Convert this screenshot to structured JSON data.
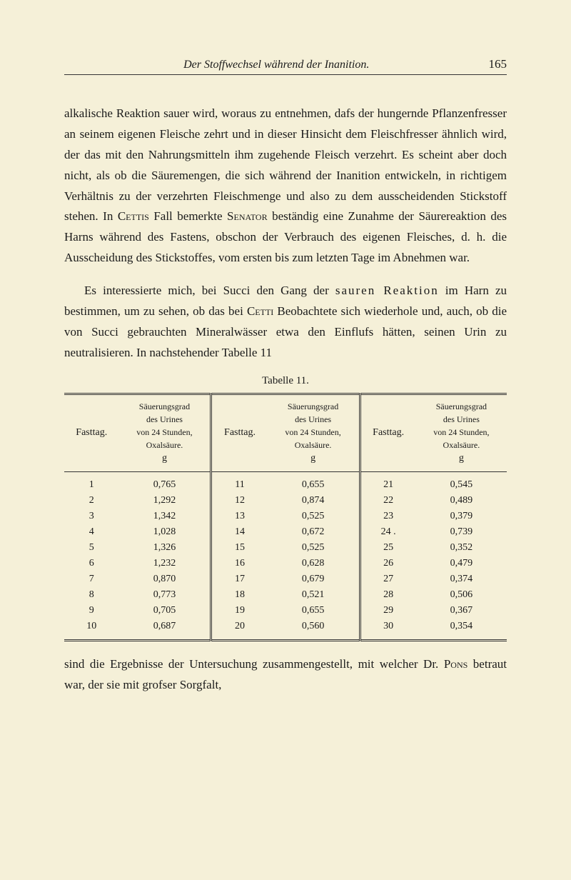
{
  "header": {
    "title": "Der Stoffwechsel während der Inanition.",
    "page_number": "165"
  },
  "paragraph1": "alkalische Reaktion sauer wird, woraus zu entnehmen, dafs der hungernde Pflanzenfresser an seinem eigenen Fleische zehrt und in dieser Hinsicht dem Fleischfresser ähnlich wird, der das mit den Nahrungsmitteln ihm zugehende Fleisch ver­zehrt. Es scheint aber doch nicht, als ob die Säuremengen, die sich während der Inanition entwickeln, in richtigem Ver­hältnis zu der verzehrten Fleischmenge und also zu dem aus­scheidenden Stickstoff stehen. In ",
  "p1_cetti": "Cettis",
  "p1_after_cetti": " Fall bemerkte ",
  "p1_senator": "Senator",
  "p1_after_senator": " beständig eine Zunahme der Säurereaktion des Harns während des Fastens, obschon der Verbrauch des eigenen Fleisches, d. h. die Ausscheidung des Stickstoffes, vom ersten bis zum letzten Tage im Abnehmen war.",
  "paragraph2_a": "Es interessierte mich, bei Succi den Gang der ",
  "p2_sauren": "sauren Reaktion",
  "p2_b": " im Harn zu bestimmen, um zu sehen, ob das bei ",
  "p2_cetti": "Cetti",
  "p2_c": " Beobachtete sich wiederhole und, auch, ob die von Succi gebrauchten Mineralwässer etwa den Einflufs hätten, seinen Urin zu neutralisieren. In nachstehender Tabelle 11",
  "table_caption": "Tabelle 11.",
  "table": {
    "columns": {
      "c1": "Fasttag.",
      "c2_line1": "Säuerungsgrad",
      "c2_line2": "des Urines",
      "c2_line3": "von 24 Stunden,",
      "c2_line4": "Oxalsäure.",
      "c2_line5": "g",
      "c3": "Fasttag.",
      "c4_line1": "Säuerungsgrad",
      "c4_line2": "des Urines",
      "c4_line3": "von 24 Stunden,",
      "c4_line4": "Oxalsäure.",
      "c4_line5": "g",
      "c5": "Fasttag.",
      "c6_line1": "Säuerungsgrad",
      "c6_line2": "des Urines",
      "c6_line3": "von 24 Stunden,",
      "c6_line4": "Oxalsäure.",
      "c6_line5": "g"
    },
    "rows": [
      [
        "1",
        "0,765",
        "11",
        "0,655",
        "21",
        "0,545"
      ],
      [
        "2",
        "1,292",
        "12",
        "0,874",
        "22",
        "0,489"
      ],
      [
        "3",
        "1,342",
        "13",
        "0,525",
        "23",
        "0,379"
      ],
      [
        "4",
        "1,028",
        "14",
        "0,672",
        "24 .",
        "0,739"
      ],
      [
        "5",
        "1,326",
        "15",
        "0,525",
        "25",
        "0,352"
      ],
      [
        "6",
        "1,232",
        "16",
        "0,628",
        "26",
        "0,479"
      ],
      [
        "7",
        "0,870",
        "17",
        "0,679",
        "27",
        "0,374"
      ],
      [
        "8",
        "0,773",
        "18",
        "0,521",
        "28",
        "0,506"
      ],
      [
        "9",
        "0,705",
        "19",
        "0,655",
        "29",
        "0,367"
      ],
      [
        "10",
        "0,687",
        "20",
        "0,560",
        "30",
        "0,354"
      ]
    ]
  },
  "closing_a": "sind die Ergebnisse der Untersuchung zusammengestellt, mit welcher Dr. ",
  "closing_pons": "Pons",
  "closing_b": " betraut war, der sie mit grofser Sorgfalt,",
  "styling": {
    "background_color": "#f5f0d8",
    "text_color": "#1a1a1a",
    "body_fontsize": 17,
    "table_fontsize": 14,
    "caption_fontsize": 15
  }
}
